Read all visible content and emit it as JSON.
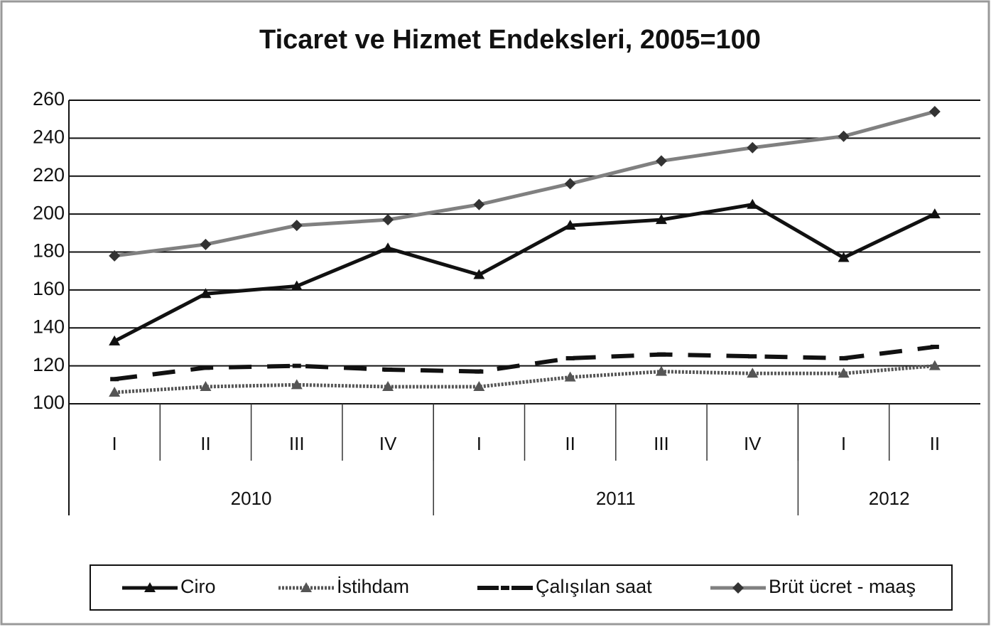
{
  "chart_data": {
    "type": "line",
    "title": "Ticaret ve Hizmet Endeksleri, 2005=100",
    "categories": [
      "I",
      "II",
      "III",
      "IV",
      "I",
      "II",
      "III",
      "IV",
      "I",
      "II"
    ],
    "groups": [
      {
        "label": "2010",
        "count": 4
      },
      {
        "label": "2011",
        "count": 4
      },
      {
        "label": "2012",
        "count": 2
      }
    ],
    "series": [
      {
        "name": "Ciro",
        "color": "#111111",
        "style": "solid",
        "marker": "triangle",
        "values": [
          133,
          158,
          162,
          182,
          168,
          194,
          197,
          205,
          177,
          200
        ]
      },
      {
        "name": "İstihdam",
        "color": "#555555",
        "style": "dotted",
        "marker": "triangle",
        "values": [
          106,
          109,
          110,
          109,
          109,
          114,
          117,
          116,
          116,
          120
        ]
      },
      {
        "name": "Çalışılan saat",
        "color": "#111111",
        "style": "dashed",
        "marker": "dash",
        "values": [
          113,
          119,
          120,
          118,
          117,
          124,
          126,
          125,
          124,
          130
        ]
      },
      {
        "name": "Brüt ücret - maaş",
        "color": "#808080",
        "style": "solid",
        "marker": "diamond",
        "values": [
          178,
          184,
          194,
          197,
          205,
          216,
          228,
          235,
          241,
          254
        ]
      }
    ],
    "ylim": [
      100,
      260
    ],
    "yticks": [
      100,
      120,
      140,
      160,
      180,
      200,
      220,
      240,
      260
    ],
    "grid": true,
    "legend": "bottom"
  }
}
